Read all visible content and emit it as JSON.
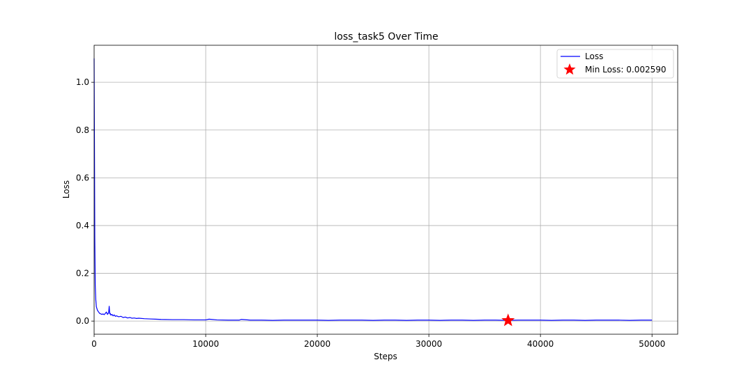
{
  "chart_data": {
    "type": "line",
    "title": "loss_task5 Over Time",
    "xlabel": "Steps",
    "ylabel": "Loss",
    "xlim": [
      0,
      52300
    ],
    "ylim": [
      -0.055,
      1.155
    ],
    "xticks": [
      0,
      10000,
      20000,
      30000,
      40000,
      50000
    ],
    "xtick_labels": [
      "0",
      "10000",
      "20000",
      "30000",
      "40000",
      "50000"
    ],
    "yticks": [
      0.0,
      0.2,
      0.4,
      0.6,
      0.8,
      1.0
    ],
    "ytick_labels": [
      "0.0",
      "0.2",
      "0.4",
      "0.6",
      "0.8",
      "1.0"
    ],
    "grid": true,
    "legend_position": "top-right",
    "series": [
      {
        "name": "Loss",
        "color": "#0000ff",
        "x": [
          0,
          30,
          60,
          100,
          150,
          200,
          300,
          400,
          500,
          600,
          700,
          800,
          900,
          1000,
          1100,
          1200,
          1300,
          1350,
          1400,
          1450,
          1500,
          1600,
          1700,
          1800,
          1900,
          2000,
          2200,
          2400,
          2600,
          2800,
          3000,
          3200,
          3400,
          3600,
          3800,
          4000,
          4500,
          5000,
          5500,
          6000,
          7000,
          8000,
          9000,
          10000,
          10300,
          11000,
          12000,
          13000,
          13200,
          14000,
          15000,
          16000,
          17000,
          18000,
          19000,
          20000,
          21000,
          22000,
          23000,
          24000,
          25000,
          26000,
          27000,
          28000,
          29000,
          30000,
          31000,
          32000,
          33000,
          34000,
          35000,
          36000,
          37000,
          38000,
          39000,
          40000,
          41000,
          42000,
          43000,
          44000,
          45000,
          46000,
          47000,
          48000,
          49000,
          50000
        ],
        "values": [
          1.1,
          0.75,
          0.35,
          0.15,
          0.09,
          0.06,
          0.045,
          0.038,
          0.032,
          0.03,
          0.028,
          0.03,
          0.027,
          0.032,
          0.038,
          0.028,
          0.035,
          0.062,
          0.03,
          0.032,
          0.025,
          0.028,
          0.022,
          0.026,
          0.02,
          0.022,
          0.018,
          0.02,
          0.015,
          0.017,
          0.013,
          0.015,
          0.012,
          0.013,
          0.011,
          0.012,
          0.01,
          0.009,
          0.008,
          0.007,
          0.006,
          0.006,
          0.005,
          0.005,
          0.008,
          0.005,
          0.004,
          0.004,
          0.007,
          0.004,
          0.004,
          0.003,
          0.004,
          0.004,
          0.004,
          0.004,
          0.003,
          0.004,
          0.004,
          0.004,
          0.003,
          0.004,
          0.004,
          0.003,
          0.004,
          0.004,
          0.003,
          0.004,
          0.004,
          0.003,
          0.004,
          0.004,
          0.003,
          0.004,
          0.004,
          0.004,
          0.003,
          0.004,
          0.004,
          0.003,
          0.004,
          0.004,
          0.004,
          0.003,
          0.004,
          0.004
        ]
      },
      {
        "name": "Min Loss: 0.002590",
        "color": "#ff0000",
        "marker": "star",
        "x": [
          37100
        ],
        "values": [
          0.00259
        ]
      }
    ]
  }
}
